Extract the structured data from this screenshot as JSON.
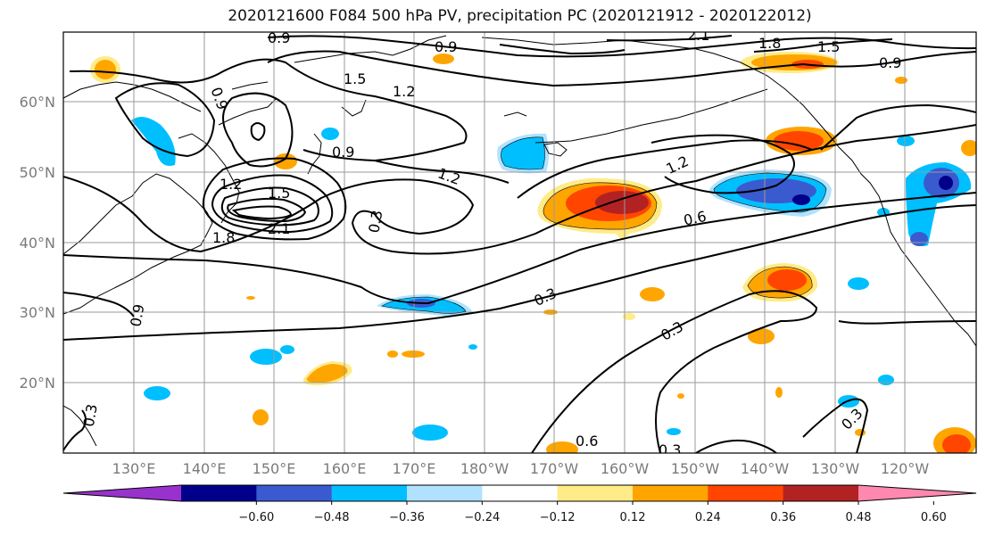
{
  "title": "2020121600 F084 500 hPa PV, precipitation PC (2020121912 - 2020122012)",
  "lon_labels": [
    "130°E",
    "140°E",
    "150°E",
    "160°E",
    "170°E",
    "180°W",
    "170°W",
    "160°W",
    "150°W",
    "140°W",
    "130°W",
    "120°W"
  ],
  "lat_labels": [
    "60°N",
    "50°N",
    "40°N",
    "30°N",
    "20°N"
  ],
  "colorbar": {
    "colors": [
      "#9932cc",
      "#00008b",
      "#3a5bcf",
      "#00bfff",
      "#b0e2ff",
      "#ffffff",
      "#ffeb87",
      "#ffa500",
      "#ff4500",
      "#b22222",
      "#ff88b0"
    ],
    "tick_labels": [
      "-0.60",
      "-0.48",
      "-0.36",
      "-0.24",
      "-0.12",
      "0.12",
      "0.24",
      "0.36",
      "0.48",
      "0.60"
    ]
  },
  "contour_labels": [
    "0.9",
    "0.9",
    "2.1",
    "1.8",
    "1.5",
    "0.9",
    "1.5",
    "1.2",
    "0.9",
    "0.9",
    "1.2",
    "1.5",
    "2.1",
    "1.8",
    "0.3",
    "1.2",
    "1.2",
    "0.6",
    "0.3",
    "0.3",
    "0.3",
    "0.6",
    "0.3",
    "0.9",
    "0.3"
  ]
}
